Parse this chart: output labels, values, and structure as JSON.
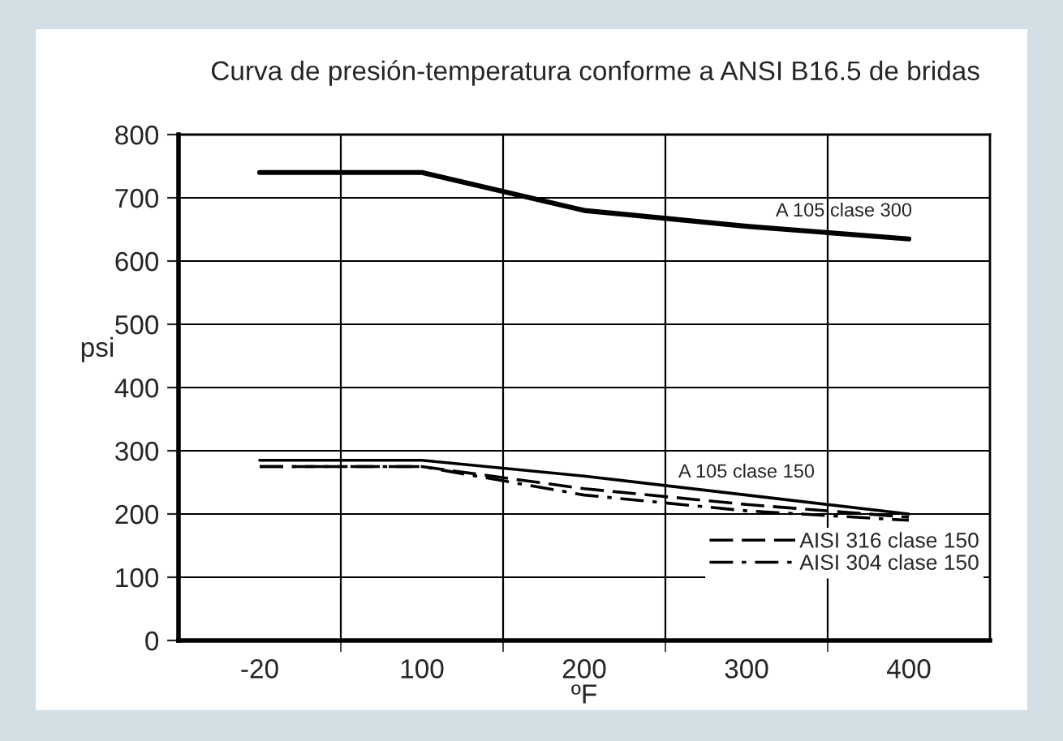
{
  "chart_data": {
    "type": "line",
    "title": "Curva de presión-temperatura conforme a ANSI B16.5 de bridas",
    "xlabel": "ºF",
    "ylabel": "psi",
    "categories": [
      "-20",
      "100",
      "200",
      "300",
      "400"
    ],
    "series": [
      {
        "name": "A 105 clase 300",
        "color": "#000000",
        "line_style": "solid",
        "values": [
          740,
          740,
          680,
          655,
          635
        ]
      },
      {
        "name": "A 105 clase 150",
        "color": "#000000",
        "line_style": "solid",
        "values": [
          285,
          285,
          260,
          230,
          200
        ]
      },
      {
        "name": "AISI 316 clase 150",
        "color": "#000000",
        "line_style": "dashed",
        "values": [
          275,
          275,
          240,
          215,
          195
        ]
      },
      {
        "name": "AISI 304 clase 150",
        "color": "#000000",
        "line_style": "dashdot",
        "values": [
          275,
          275,
          230,
          205,
          190
        ]
      }
    ],
    "ylim": [
      0,
      800
    ],
    "yticks": [
      0,
      100,
      200,
      300,
      400,
      500,
      600,
      700,
      800
    ],
    "grid": true,
    "legend": "bottom right",
    "marker": "none"
  }
}
